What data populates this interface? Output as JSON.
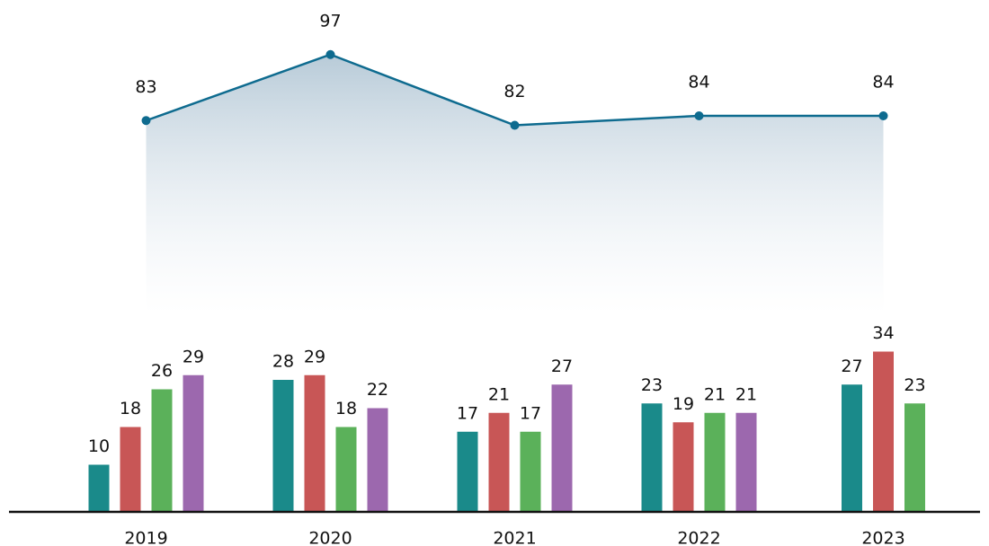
{
  "chart_data": {
    "type": "bar",
    "categories": [
      "2019",
      "2020",
      "2021",
      "2022",
      "2023"
    ],
    "ylim": [
      0,
      100
    ],
    "series": [
      {
        "color": "#1a8a8a",
        "values": [
          10,
          28,
          17,
          23,
          27
        ]
      },
      {
        "color": "#c85656",
        "values": [
          18,
          29,
          21,
          19,
          34
        ]
      },
      {
        "color": "#5bb15a",
        "values": [
          26,
          18,
          17,
          21,
          23
        ]
      },
      {
        "color": "#9c68ae",
        "values": [
          29,
          22,
          27,
          21,
          null
        ]
      },
      {
        "type": "line",
        "color": "#0e6b8f",
        "values": [
          83,
          97,
          82,
          84,
          84
        ]
      }
    ]
  }
}
